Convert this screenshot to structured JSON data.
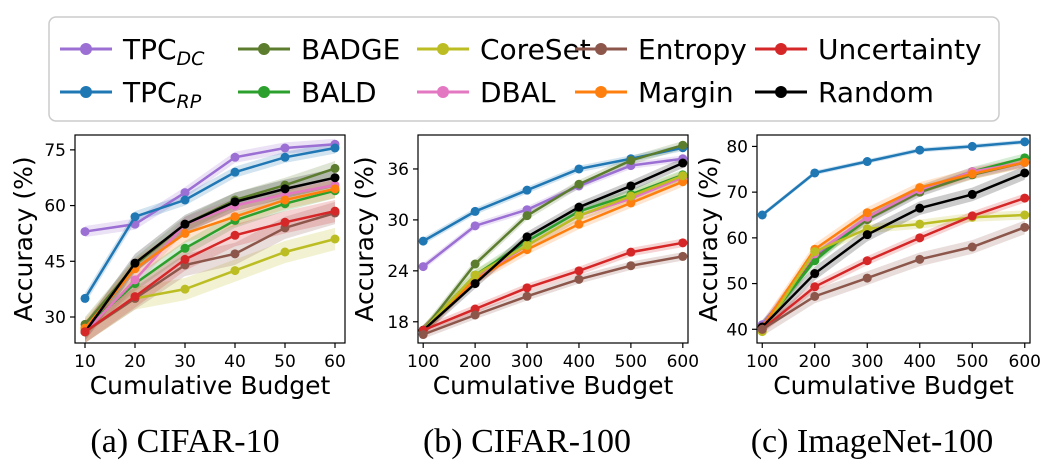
{
  "legend": {
    "items": [
      {
        "base": "TPC",
        "sub": "DC",
        "color": "#9b6fd3"
      },
      {
        "base": "BADGE",
        "sub": "",
        "color": "#5c7d2e"
      },
      {
        "base": "CoreSet",
        "sub": "",
        "color": "#bcbd22"
      },
      {
        "base": "Entropy",
        "sub": "",
        "color": "#8c564b"
      },
      {
        "base": "Uncertainty",
        "sub": "",
        "color": "#d62728"
      },
      {
        "base": "TPC",
        "sub": "RP",
        "color": "#1f77b4"
      },
      {
        "base": "BALD",
        "sub": "",
        "color": "#2ca02c"
      },
      {
        "base": "DBAL",
        "sub": "",
        "color": "#e377c2"
      },
      {
        "base": "Margin",
        "sub": "",
        "color": "#ff7f0e"
      },
      {
        "base": "Random",
        "sub": "",
        "color": "#000000"
      }
    ]
  },
  "chart_data": [
    {
      "type": "line",
      "caption": "(a) CIFAR-10",
      "xlabel": "Cumulative Budget",
      "ylabel": "Accuracy (%)",
      "x": [
        10,
        20,
        30,
        40,
        50,
        60
      ],
      "xticks": [
        10,
        20,
        30,
        40,
        50,
        60
      ],
      "yticks": [
        30,
        45,
        60,
        75
      ],
      "xlim": [
        8,
        62
      ],
      "ylim": [
        23,
        79
      ],
      "series": [
        {
          "name": "TPC_DC",
          "color": "#9b6fd3",
          "values": [
            53,
            55,
            63.5,
            73,
            75.5,
            76.5
          ],
          "band": 1.5
        },
        {
          "name": "TPC_RP",
          "color": "#1f77b4",
          "values": [
            35,
            57,
            61.5,
            69,
            73,
            75.5
          ],
          "band": 1.5
        },
        {
          "name": "BADGE",
          "color": "#5c7d2e",
          "values": [
            28,
            44,
            55,
            61.5,
            65.5,
            70
          ],
          "band": 2
        },
        {
          "name": "BALD",
          "color": "#2ca02c",
          "values": [
            27,
            39,
            48.5,
            56,
            60.5,
            64
          ],
          "band": 2
        },
        {
          "name": "DBAL",
          "color": "#e377c2",
          "values": [
            26,
            40,
            55,
            60,
            63,
            65.5
          ],
          "band": 2
        },
        {
          "name": "Margin",
          "color": "#ff7f0e",
          "values": [
            27,
            43,
            52.5,
            57,
            61.5,
            64.5
          ],
          "band": 2.5
        },
        {
          "name": "Random",
          "color": "#000000",
          "values": [
            26,
            44.5,
            55,
            61,
            64.5,
            67.5
          ],
          "band": 2.5
        },
        {
          "name": "CoreSet",
          "color": "#bcbd22",
          "values": [
            26,
            35,
            37.5,
            42.5,
            47.5,
            51
          ],
          "band": 3
        },
        {
          "name": "Entropy",
          "color": "#8c564b",
          "values": [
            26,
            35,
            44,
            47,
            54,
            58
          ],
          "band": 3
        },
        {
          "name": "Uncertainty",
          "color": "#d62728",
          "values": [
            26,
            35.5,
            45.5,
            52,
            55.5,
            58.5
          ],
          "band": 3
        }
      ]
    },
    {
      "type": "line",
      "caption": "(b) CIFAR-100",
      "xlabel": "Cumulative Budget",
      "ylabel": "Accuracy (%)",
      "x": [
        100,
        200,
        300,
        400,
        500,
        600
      ],
      "xticks": [
        100,
        200,
        300,
        400,
        500,
        600
      ],
      "yticks": [
        18,
        24,
        30,
        36
      ],
      "xlim": [
        90,
        610
      ],
      "ylim": [
        15.5,
        40
      ],
      "series": [
        {
          "name": "TPC_DC",
          "color": "#9b6fd3",
          "values": [
            24.5,
            29.3,
            31.2,
            34,
            36.4,
            37.2
          ],
          "band": 0.4
        },
        {
          "name": "TPC_RP",
          "color": "#1f77b4",
          "values": [
            27.5,
            31,
            33.5,
            36,
            37.2,
            38.5
          ],
          "band": 0.4
        },
        {
          "name": "BADGE",
          "color": "#5c7d2e",
          "values": [
            17,
            24.8,
            30.5,
            34.2,
            37,
            38.8
          ],
          "band": 0.5
        },
        {
          "name": "BALD",
          "color": "#2ca02c",
          "values": [
            17,
            23.5,
            27.5,
            31,
            33,
            35.3
          ],
          "band": 0.6
        },
        {
          "name": "DBAL",
          "color": "#e377c2",
          "values": [
            17,
            23,
            27,
            30.5,
            32.5,
            35
          ],
          "band": 0.6
        },
        {
          "name": "Margin",
          "color": "#ff7f0e",
          "values": [
            17,
            23,
            26.5,
            29.5,
            32,
            34.5
          ],
          "band": 0.6
        },
        {
          "name": "CoreSet",
          "color": "#bcbd22",
          "values": [
            17,
            23.5,
            27,
            30.5,
            32.8,
            35.2
          ],
          "band": 0.6
        },
        {
          "name": "Random",
          "color": "#000000",
          "values": [
            17,
            22.5,
            28,
            31.5,
            34,
            36.7
          ],
          "band": 0.6
        },
        {
          "name": "Uncertainty",
          "color": "#d62728",
          "values": [
            17,
            19.5,
            22,
            24,
            26.2,
            27.3
          ],
          "band": 0.5
        },
        {
          "name": "Entropy",
          "color": "#8c564b",
          "values": [
            16.5,
            18.8,
            21,
            23,
            24.6,
            25.7
          ],
          "band": 0.5
        }
      ]
    },
    {
      "type": "line",
      "caption": "(c) ImageNet-100",
      "xlabel": "Cumulative Budget",
      "ylabel": "Accuracy (%)",
      "x": [
        100,
        200,
        300,
        400,
        500,
        600
      ],
      "xticks": [
        100,
        200,
        300,
        400,
        500,
        600
      ],
      "yticks": [
        40,
        50,
        60,
        70,
        80
      ],
      "xlim": [
        90,
        610
      ],
      "ylim": [
        37,
        82.5
      ],
      "series": [
        {
          "name": "TPC_RP",
          "color": "#1f77b4",
          "values": [
            65,
            74.2,
            76.7,
            79.2,
            80,
            81
          ],
          "band": 0.5
        },
        {
          "name": "TPC_DC",
          "color": "#9b6fd3",
          "values": [
            41,
            56,
            64,
            70,
            74,
            76.5
          ],
          "band": 1
        },
        {
          "name": "BADGE",
          "color": "#5c7d2e",
          "values": [
            40.5,
            55.5,
            64,
            70,
            73.8,
            76.5
          ],
          "band": 1
        },
        {
          "name": "BALD",
          "color": "#2ca02c",
          "values": [
            40.5,
            55,
            64.5,
            70.5,
            74.5,
            77.5
          ],
          "band": 1
        },
        {
          "name": "DBAL",
          "color": "#e377c2",
          "values": [
            40.5,
            56.5,
            64.5,
            70.5,
            74.5,
            76.5
          ],
          "band": 1
        },
        {
          "name": "Margin",
          "color": "#ff7f0e",
          "values": [
            40.5,
            57.5,
            65.5,
            71,
            74,
            76.5
          ],
          "band": 1.2
        },
        {
          "name": "CoreSet",
          "color": "#bcbd22",
          "values": [
            39.5,
            57,
            62,
            63,
            64.5,
            65
          ],
          "band": 1
        },
        {
          "name": "Random",
          "color": "#000000",
          "values": [
            40.5,
            52.2,
            60.7,
            66.5,
            69.5,
            74.2
          ],
          "band": 1.5
        },
        {
          "name": "Uncertainty",
          "color": "#d62728",
          "values": [
            40,
            49.3,
            55,
            60,
            64.8,
            68.7
          ],
          "band": 1
        },
        {
          "name": "Entropy",
          "color": "#8c564b",
          "values": [
            40,
            47.2,
            51.2,
            55.3,
            58,
            62.3
          ],
          "band": 1.5
        }
      ]
    }
  ]
}
